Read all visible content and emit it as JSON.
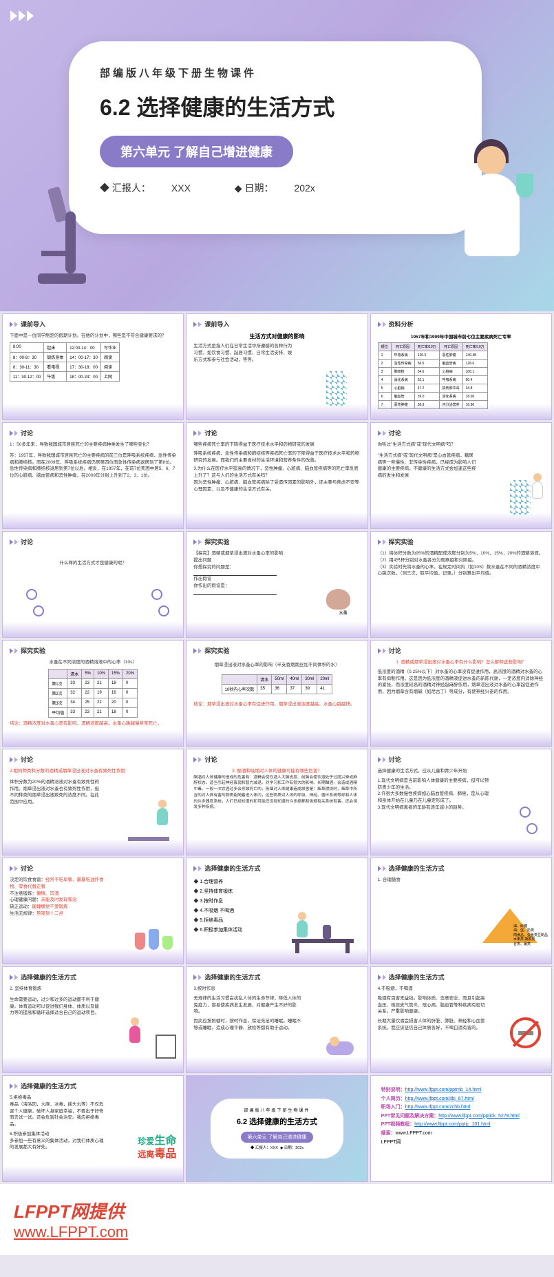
{
  "hero": {
    "subtitle_top": "部编版八年级下册生物课件",
    "main_title": "6.2 选择健康的生活方式",
    "unit_badge": "第六单元 了解自己增进健康",
    "reporter_label": "◆ 汇报人：",
    "reporter_value": "XXX",
    "date_label": "◆ 日期：",
    "date_value": "202x"
  },
  "slide_titles": {
    "intro": "课前导入",
    "analysis": "资料分析",
    "discuss": "讨论",
    "experiment": "探究实验",
    "lifestyle": "选择健康的生活方式"
  },
  "slide2": {
    "prompt": "下面中是一位同学制定的假期计划。在他的计划中，哪些是不符合健康要求的？",
    "schedule": [
      [
        "8:00",
        "起床",
        "12:00-14：00",
        "写作业"
      ],
      [
        "8：00-8：30",
        "锻炼身体",
        "14：00-17：30",
        "阅读"
      ],
      [
        "8：30-11：30",
        "看电视",
        "17：30-18：00",
        "阅读"
      ],
      [
        "11：30-12：00",
        "午饭",
        "18：00-24：00",
        "上网"
      ]
    ]
  },
  "slide3": {
    "title": "生活方式对健康的影响",
    "text": "生活方式是指人们在日常生活中所遵循的各种行为习惯，如饮食习惯、起居习惯、日常生活安排、娱乐方式和参与社会活动，等等。"
  },
  "slide4": {
    "title": "1957年和1999年中国城市前七位主要疾病死亡专率",
    "headers": [
      "",
      "1957年",
      "",
      "1999年",
      ""
    ],
    "sub": [
      "顺位",
      "死亡原因",
      "死亡率/10万",
      "死亡原因",
      "死亡率/10万"
    ],
    "rows": [
      [
        "1",
        "呼吸系病",
        "120.3",
        "恶性肿瘤",
        "140.48"
      ],
      [
        "2",
        "急性传染病",
        "56.6",
        "脑血管病",
        "128.6"
      ],
      [
        "3",
        "肺结核",
        "54.6",
        "心脏病",
        "106.1"
      ],
      [
        "4",
        "消化系病",
        "52.1",
        "呼吸系病",
        "60.4"
      ],
      [
        "5",
        "心脏病",
        "47.2",
        "损伤和中毒",
        "34.8"
      ],
      [
        "6",
        "脑血管",
        "39.0",
        "消化系病",
        "18.06"
      ],
      [
        "7",
        "恶性肿瘤",
        "36.9",
        "内分泌营养",
        "16.96"
      ]
    ]
  },
  "slide5": {
    "q": "1：50多年来，导致我国城市居民死亡的主要疾病种类发生了哪些变化？",
    "a": "答：1957年，导致我国城市居民死亡的主要疾病的前三位是呼吸系统疾病、急性传染病和肺结核。而在2009年，呼吸系统疾病仍居第四位而急性传染病退居到了第8位。急性传染病和肺结核退居到第7位以后。相反，在1957年，在前7位死因中居5、6、7位的心脏病、脑血管病和恶性肿瘤，在2009年分别上升到了2、3、1位。"
  },
  "slide6": {
    "p1": "哪些疾病死亡率的下降得益于医疗技术水平和药物研究的发展",
    "p2": "呼吸系统疾病，急性传染病和肺结核等疾病死亡率的下降得益于医疗技术水平和药物研究的发展。而我们的主要食材的生活环境和营养条件的改善。",
    "p3": "3.为什么在医疗水平提高的情况下，恶性肿瘤、心脏病、脑血管疾病等的死亡率反而上升了？这与人们的生活方式有关吗？",
    "p4": "因为恶性肿瘤、心脏病、脑血管疾病除了受遗传因素的影响外，还主要与焦虑不安等心理因素、以及不健康的生活方式有关。"
  },
  "slide7": {
    "p1": "你听过\"生活方式病\"或\"现代文明病\"吗？",
    "p2": "\"生活方式病\"或\"现代文明病\"是心血管疾病，糖尿病等一些慢性、非传染性疾病，已经成为影响人们健康的主要疾病。不健康的生活方式会加速这些疾病的发生和发展"
  },
  "slide8": {
    "q": "什么样的生活方式才是健康的呢？"
  },
  "slide9": {
    "title": "【探究】酒精或烟草浸出液对水蚤心率的影响",
    "p1": "提出问题",
    "p2": "你想探究的问题是：",
    "p3": "作出假设",
    "p4": "你作出的假设是：",
    "caption": "水蚤"
  },
  "slide10": {
    "items": [
      "（1）将体积分数为95%的酒精配成浓度分别为5%，10%，15%，20%的酒精溶液。",
      "（2）用4只杯分别对水蚤各分为观察组和对照组。",
      "（3）实验时先将水蚤的心率，在规定时间内（如10S）数水蚤在不同的酒精浓度中心跳次数。（测三次，取平均值，记录。）分别算出平均值。"
    ]
  },
  "slide11": {
    "title": "水蚤在不同浓度的酒精溶液中的心率（10s）",
    "headers": [
      "",
      "清水",
      "5%",
      "10%",
      "15%",
      "20%"
    ],
    "rows": [
      [
        "第1次",
        "33",
        "23",
        "21",
        "18",
        "0"
      ],
      [
        "第2次",
        "32",
        "22",
        "19",
        "16",
        "0"
      ],
      [
        "第3次",
        "34",
        "25",
        "22",
        "20",
        "0"
      ],
      [
        "平均值",
        "33",
        "23",
        "21",
        "18",
        "0"
      ]
    ],
    "conclusion": "结论：酒精浓度对水蚤心率有影响，酒精浓度越高，水蚤心跳越慢甚至死亡。"
  },
  "slide12": {
    "title": "烟草浸出液对水蚤心率的影响（半支香烟烟丝加不同体积的水）",
    "headers": [
      "",
      "清水",
      "50ml",
      "40ml",
      "30ml",
      "20ml"
    ],
    "rows": [
      [
        "10秒内心率次数",
        "35",
        "36",
        "37",
        "39",
        "41"
      ]
    ],
    "conclusion": "结论：烟草浸出液对水蚤心率有促进作用，烟草浸出液浓度越高，水蚤心跳越快。"
  },
  "slide13": {
    "q": "1. 酒精或烟草浸出液对水蚤心率有什么影响？怎么解释这些影响？",
    "a": "低浓度的酒精（0.25%以下）对水蚤的心率没有促进作用，高浓度的酒精对水蚤的心率有抑制作用。这是因为低浓度的酒精液促进水蚤的新陈代谢，一定浓度内消除神经的紧张，而浓度较高的酒精对神经起麻醉作用，烟草浸出液对水蚤的心率起促进作用，因为烟草含有烟碱（如尼古丁）等成分，有使神经兴奋的作用。"
  },
  "slide14": {
    "q": "2.相同种类和分数的酒精或烟草浸出液对水蚤有致死性作用",
    "a": "体积分数为20%的酒精溶液对水蚤有致死性的作用。烟草浸出液对水蚤也有致死性作用，但不同种类的烟草浸出液致死的浓度不同。在此范围中应用。"
  },
  "slide15": {
    "q": "3. 酗酒和吸烟对人体的健康可能有哪些危害？",
    "a": "酗酒对人体健康的造成的危害有：酒精会使饮酒人大脑皮层、前脑会使饮酒处于过度兴奋或麻醉状态。适当引起神经衰弱和智力减退。对学习和工作有很大的影响。长期酗酒，会造成酒精中毒。一般一次饮酒过多会导致死亡的，吸烟对人体健康造成损害是：烟草燃烧时，烟草中所含的对人体有害的物质能随着进入体内，这些物质对人体的呼吸、神经、循环系统等部和人体的许多器官系统，人们已经知道的和可能还没有知道的许多癌都和吸烟有关系统有害。还会诱发多种疾病。"
  },
  "slide16": {
    "p1": "选择健康的生活方式，应从儿童和青少年开始",
    "items": [
      "1.现代文明病是当前影响人体健康的主要疾病，但可以预防青少年的生活。",
      "2.许很大多数慢性疾病如心脑血管疾病、肺癌，是从心理和身体开始在儿童乃在儿童定形成了。",
      "3.现代文明病患者的年龄有逐年减小的趋势。"
    ]
  },
  "slide17": {
    "p1": "决定的饮食食谱：经常不吃早餐、暴暴吃油炸食物、零食代替正餐",
    "p2": "不注意锻炼：懒惰、饮酒",
    "p3": "心理健康问题：未能及时发现和治",
    "p4": "缺乏运动：能睡懒觉不爱锻炼",
    "p5": "生活无规律：熬夜到十二点"
  },
  "slide18": {
    "items": [
      "1.合理营养",
      "2.坚持体育锻炼",
      "3.按时作息",
      "4.不吸烟 不喝酒",
      "5.拒绝毒品",
      "6.积极参加集体活动"
    ]
  },
  "slide19": {
    "title": "1. 合理膳食",
    "pyramid_labels": [
      "油、砂糖",
      "油、蛋、奶类",
      "肉食品、蛋鱼类豆制品",
      "水果类 蔬菜类",
      "谷类、薯类"
    ]
  },
  "slide20": {
    "title": "2. 坚持体育锻炼",
    "p": "生命需要运动，过少和过多的运动都不利于健康。体育运动可以促进我们身体、体质以及能力等的提高和循环选择适合自己的运动项目。"
  },
  "slide21": {
    "title": "3.按时作息",
    "p1": "无规律的生活习惯会扰乱人体的生命节律，降低人体的免疫力，容易使疾病发生发展，对健康产生不好的影响。",
    "p2": "因此应按照健时，按时作息，保证充足的睡眠。睡眠不够或睡眠，造成心理平静、放松等都有助于运动。"
  },
  "slide22": {
    "title": "4.不吸烟，不喝酒",
    "p1": "吸烟有百害无益钱。影响体质、恣意安全、而且引起高血压、咳痰支气管炎、冠心病、脑血管等种疾病有密切关系。严重影响健康。",
    "p2": "长期大量饮酒会损害人体的肝脏、肺脏、神经和心血管系统。我应该坚信自己体质各好，不喝白酒有害的。"
  },
  "slide23": {
    "title": "5.拒绝毒品",
    "p1": "毒品（海洛因，大麻，冰毒，摇头丸等）不仅危害个人健康，破坏人身家庭幸福，不要出于好奇而去试一试。还会危害社会治安。我应拒绝毒品。",
    "title2": "6.积极参加集体活动",
    "p2": "多参加一些有意义的集体活动，对我们体质心理的发展都大有好处。",
    "banner1": "珍爱生命",
    "banner2": "远离毒品"
  },
  "slide_links": {
    "items": [
      {
        "label": "特别说明：",
        "url": "http://www.lfppt.com/pptmb_14.html"
      },
      {
        "label": "个人简历：",
        "url": "http://www.lfppt.com/jlbj_67.html"
      },
      {
        "label": "职场入门：",
        "url": "http://www.lfppt.com/zchb.html"
      },
      {
        "label": "PPT常见问题及解决方案：",
        "url": "http://www.lfppt.com/pptick_5278.html"
      },
      {
        "label": "PPT视频教程：",
        "url": "http://www.lfppt.com/pptjc_101.html"
      }
    ],
    "search_label": "搜索：",
    "search_value": "www.LFPPT.com",
    "site": "LFPPT网"
  },
  "footer": {
    "text": "LFPPT网提供",
    "link": "www.LFPPT.com"
  },
  "colors": {
    "primary": "#8a7bc8",
    "bg_gradient_start": "#c5b8e8",
    "bg_gradient_end": "#a8d8e8",
    "red": "#d43333",
    "green": "#2a8855"
  }
}
